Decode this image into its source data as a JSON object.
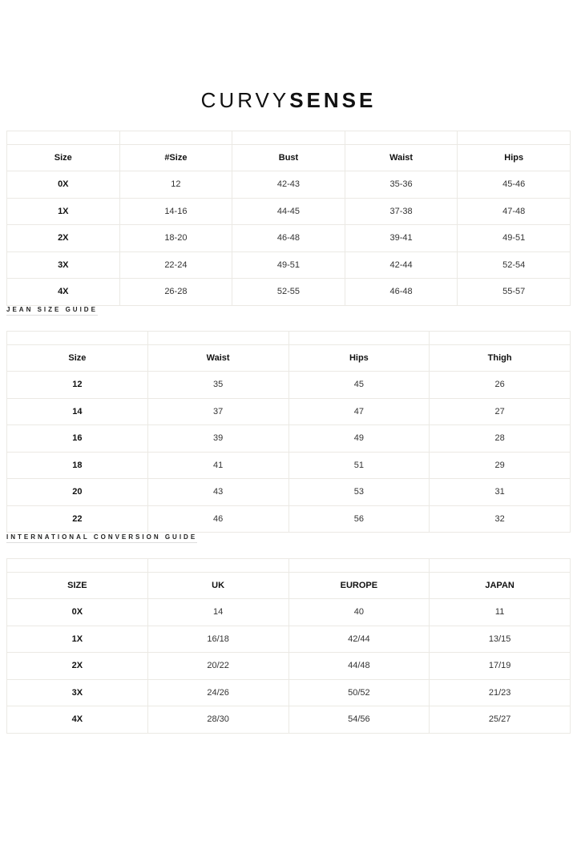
{
  "brand": {
    "part1": "CURVY",
    "part2": "SENSE"
  },
  "size_chart": {
    "headers": [
      "Size",
      "#Size",
      "Bust",
      "Waist",
      "Hips"
    ],
    "rows": [
      [
        "0X",
        "12",
        "42-43",
        "35-36",
        "45-46"
      ],
      [
        "1X",
        "14-16",
        "44-45",
        "37-38",
        "47-48"
      ],
      [
        "2X",
        "18-20",
        "46-48",
        "39-41",
        "49-51"
      ],
      [
        "3X",
        "22-24",
        "49-51",
        "42-44",
        "52-54"
      ],
      [
        "4X",
        "26-28",
        "52-55",
        "46-48",
        "55-57"
      ]
    ]
  },
  "jean_guide": {
    "title": "JEAN SIZE GUIDE",
    "headers": [
      "Size",
      "Waist",
      "Hips",
      "Thigh"
    ],
    "rows": [
      [
        "12",
        "35",
        "45",
        "26"
      ],
      [
        "14",
        "37",
        "47",
        "27"
      ],
      [
        "16",
        "39",
        "49",
        "28"
      ],
      [
        "18",
        "41",
        "51",
        "29"
      ],
      [
        "20",
        "43",
        "53",
        "31"
      ],
      [
        "22",
        "46",
        "56",
        "32"
      ]
    ]
  },
  "conversion_guide": {
    "title": "INTERNATIONAL CONVERSION GUIDE",
    "headers": [
      "SIZE",
      "UK",
      "EUROPE",
      "JAPAN"
    ],
    "rows": [
      [
        "0X",
        "14",
        "40",
        "11"
      ],
      [
        "1X",
        "16/18",
        "42/44",
        "13/15"
      ],
      [
        "2X",
        "20/22",
        "44/48",
        "17/19"
      ],
      [
        "3X",
        "24/26",
        "50/52",
        "21/23"
      ],
      [
        "4X",
        "28/30",
        "54/56",
        "25/27"
      ]
    ]
  }
}
